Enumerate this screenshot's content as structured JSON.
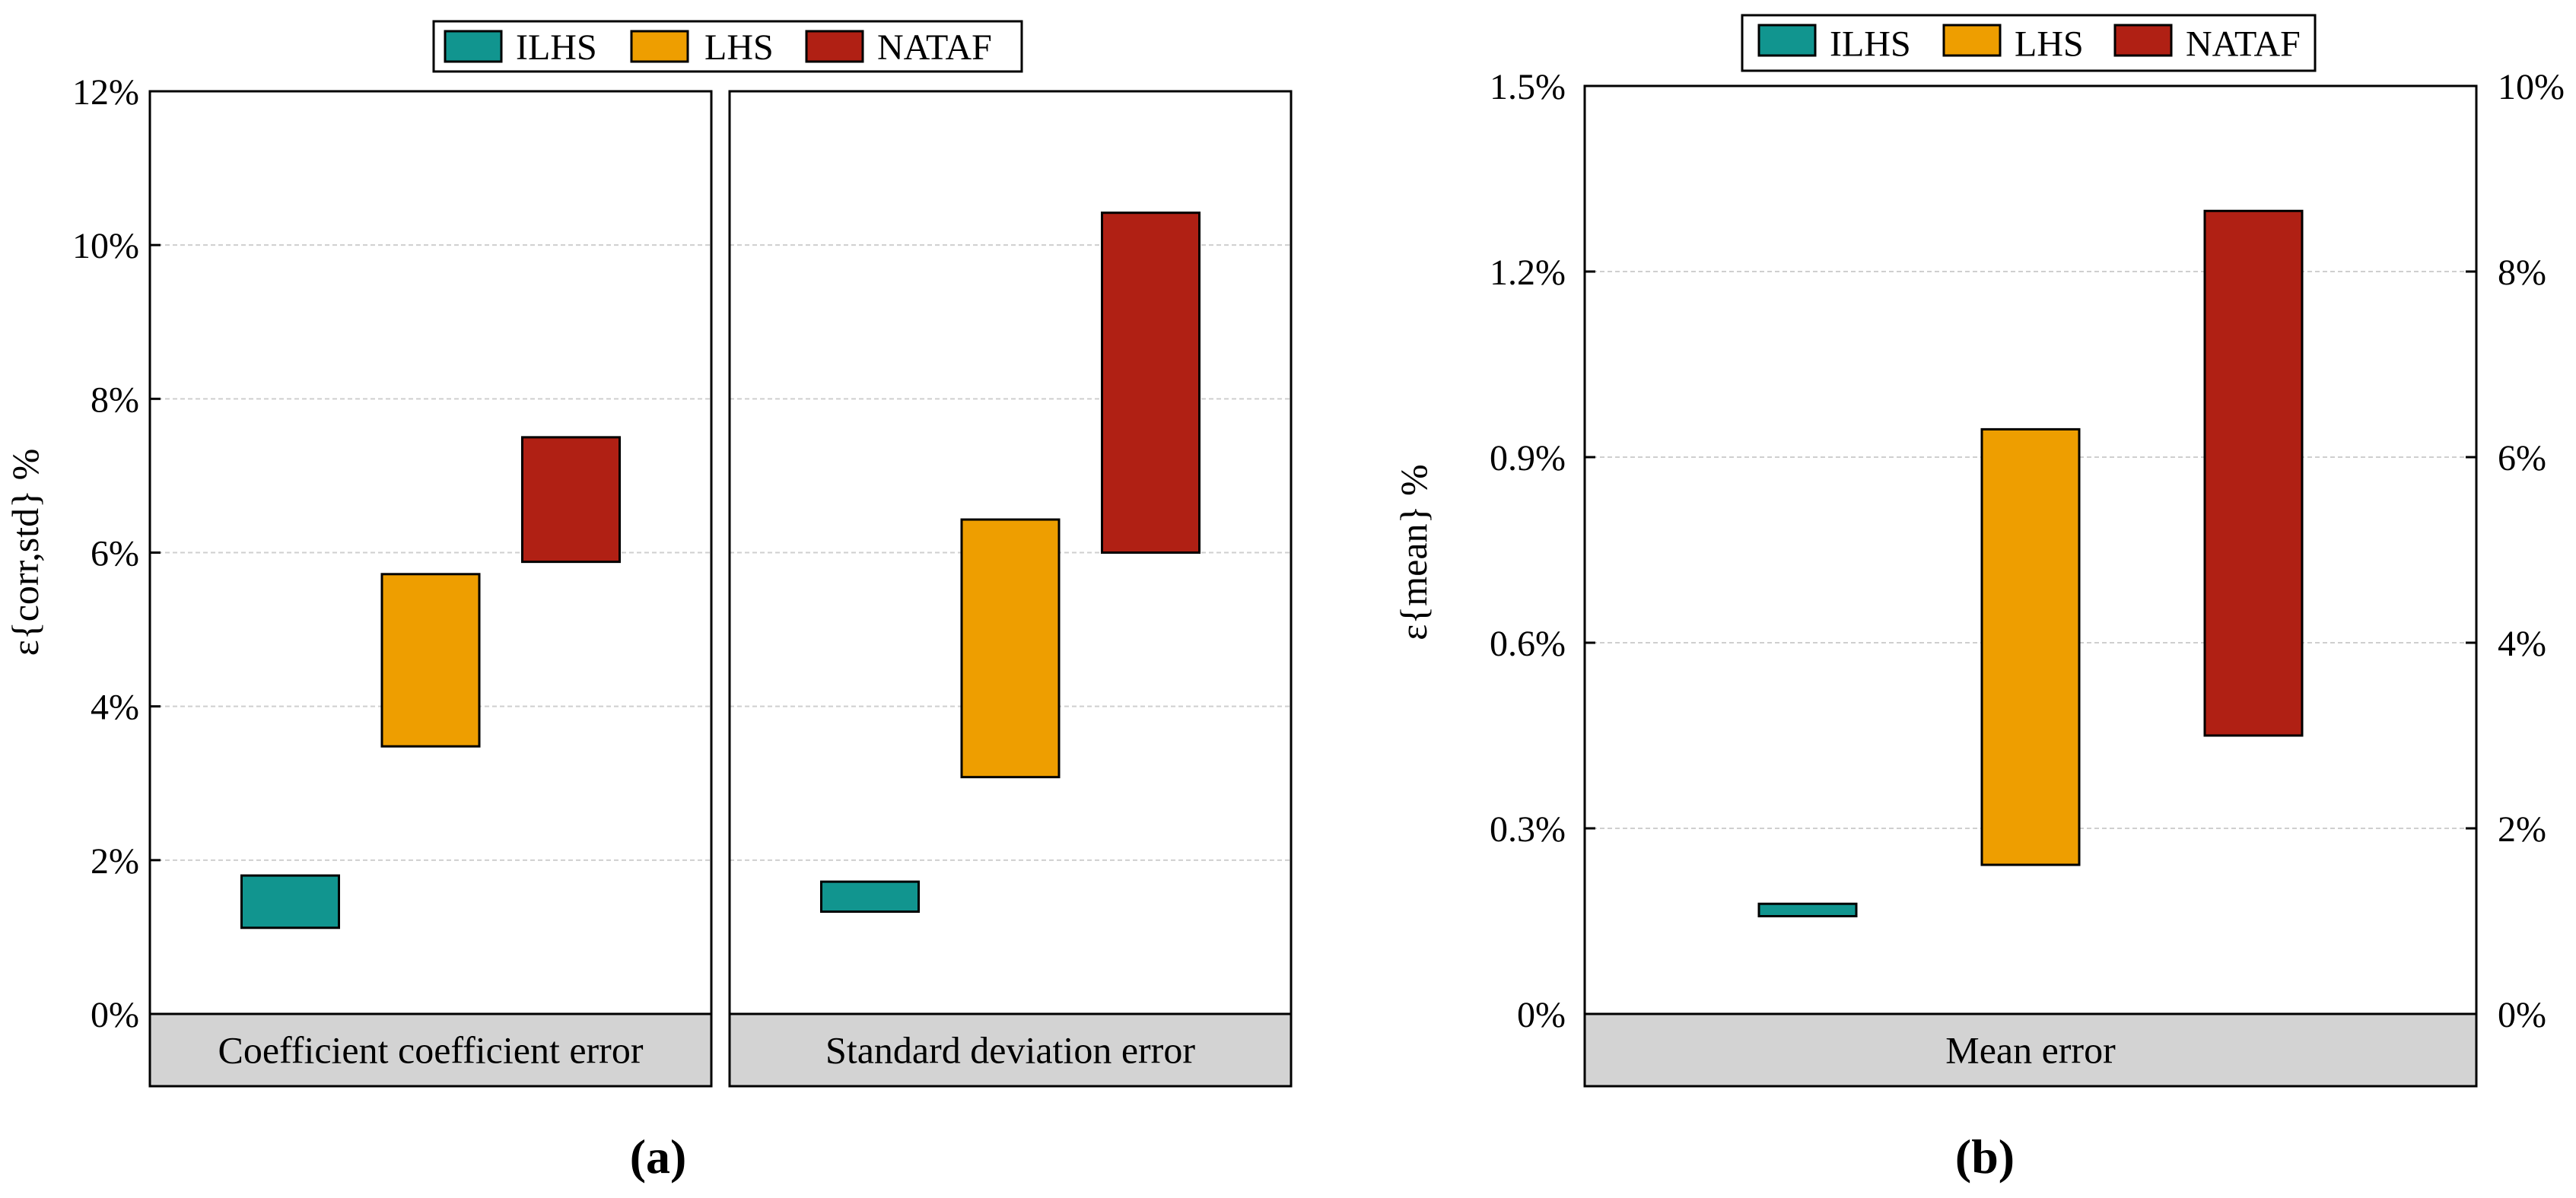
{
  "colors": {
    "ILHS": "#11958f",
    "LHS": "#ee9e00",
    "NATAF": "#b02014",
    "strip": "#d3d3d3",
    "grid": "#cfcfcf"
  },
  "legend_labels": [
    "ILHS",
    "LHS",
    "NATAF"
  ],
  "chart_data": [
    {
      "id": "a",
      "type": "range-bar",
      "figure_label": "(a)",
      "ylabel": "ε{corr,std} %",
      "yticks": [
        "0%",
        "2%",
        "4%",
        "6%",
        "8%",
        "10%",
        "12%"
      ],
      "ylim": [
        0,
        12
      ],
      "legend": [
        "ILHS",
        "LHS",
        "NATAF"
      ],
      "panels": [
        {
          "strip_label": "Coefficient coefficient error",
          "series": [
            {
              "name": "ILHS",
              "low": 1.12,
              "high": 1.8
            },
            {
              "name": "LHS",
              "low": 3.48,
              "high": 5.72
            },
            {
              "name": "NATAF",
              "low": 5.88,
              "high": 7.5
            }
          ]
        },
        {
          "strip_label": "Standard deviation error",
          "series": [
            {
              "name": "ILHS",
              "low": 1.33,
              "high": 1.72
            },
            {
              "name": "LHS",
              "low": 3.08,
              "high": 6.43
            },
            {
              "name": "NATAF",
              "low": 6.0,
              "high": 10.42
            }
          ]
        }
      ]
    },
    {
      "id": "b",
      "type": "range-bar",
      "figure_label": "(b)",
      "ylabel": "ε{mean} %",
      "yticks": [
        "0%",
        "0.3%",
        "0.6%",
        "0.9%",
        "1.2%",
        "1.5%"
      ],
      "ylim": [
        0,
        1.5
      ],
      "y2ticks": [
        "0%",
        "2%",
        "4%",
        "6%",
        "8%",
        "10%"
      ],
      "y2lim": [
        0,
        10
      ],
      "legend": [
        "ILHS",
        "LHS",
        "NATAF"
      ],
      "panels": [
        {
          "strip_label": "Mean error",
          "series": [
            {
              "name": "ILHS",
              "low": 0.158,
              "high": 0.178
            },
            {
              "name": "LHS",
              "low": 0.241,
              "high": 0.945
            },
            {
              "name": "NATAF",
              "low": 0.45,
              "high": 1.298
            }
          ]
        }
      ]
    }
  ]
}
